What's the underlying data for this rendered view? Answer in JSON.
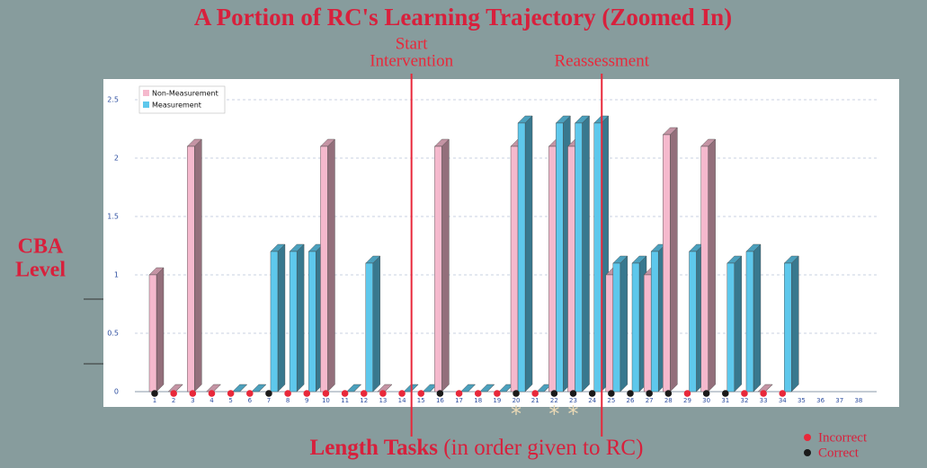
{
  "chart_data": {
    "type": "bar3d",
    "title": "A Portion of RC's Learning Trajectory (Zoomed In)",
    "ylabel": [
      "CBA",
      "Level"
    ],
    "xlabel": [
      "Length Tasks",
      " (in order given to RC)"
    ],
    "categories": [
      "1",
      "2",
      "3",
      "4",
      "5",
      "6",
      "7",
      "8",
      "9",
      "10",
      "11",
      "12",
      "13",
      "14",
      "15",
      "16",
      "17",
      "18",
      "19",
      "20",
      "21",
      "22",
      "23",
      "24",
      "25",
      "26",
      "27",
      "28",
      "29",
      "30",
      "31",
      "32",
      "33",
      "34",
      "35",
      "36",
      "37",
      "38"
    ],
    "series": [
      {
        "name": "Non-Measurement",
        "color": "#f5b9cd",
        "values": [
          1,
          0,
          2.1,
          0,
          null,
          null,
          null,
          null,
          null,
          2.1,
          null,
          null,
          0,
          null,
          null,
          2.1,
          null,
          null,
          null,
          2.1,
          null,
          2.1,
          2.1,
          null,
          1,
          null,
          1,
          2.2,
          null,
          2.1,
          null,
          null,
          0,
          null,
          null,
          null,
          null,
          null
        ]
      },
      {
        "name": "Measurement",
        "color": "#5ec8ec",
        "values": [
          null,
          null,
          null,
          null,
          0,
          0,
          1.2,
          1.2,
          1.2,
          null,
          0,
          1.1,
          null,
          0,
          0,
          null,
          0,
          0,
          0,
          2.3,
          0,
          2.3,
          2.3,
          2.3,
          1.1,
          1.1,
          1.2,
          null,
          1.2,
          null,
          1.1,
          1.2,
          null,
          1.1,
          null,
          null,
          null,
          null
        ]
      }
    ],
    "outcome_legend": [
      {
        "name": "Incorrect",
        "color": "#e8283a"
      },
      {
        "name": "Correct",
        "color": "#1a1a1a"
      }
    ],
    "outcomes": [
      "Correct",
      "Incorrect",
      "Incorrect",
      "Incorrect",
      "Incorrect",
      "Incorrect",
      "Correct",
      "Incorrect",
      "Incorrect",
      "Incorrect",
      "Incorrect",
      "Incorrect",
      "Incorrect",
      "Incorrect",
      "Incorrect",
      "Correct",
      "Incorrect",
      "Incorrect",
      "Incorrect",
      "Correct",
      "Incorrect",
      "Correct",
      "Correct",
      "Correct",
      "Correct",
      "Correct",
      "Correct",
      "Correct",
      "Incorrect",
      "Correct",
      "Correct",
      "Incorrect",
      "Incorrect",
      "Incorrect",
      null,
      null,
      null,
      null
    ],
    "markers": [
      {
        "after": "14",
        "lines": [
          "Start",
          "Intervention"
        ]
      },
      {
        "after": "24",
        "lines": [
          "Reassessment"
        ]
      }
    ],
    "asterisks": [
      {
        "category": "20",
        "label": "*"
      },
      {
        "category": "22",
        "label": "*"
      },
      {
        "category": "23",
        "label": "*"
      }
    ],
    "ylim": [
      0,
      2.5
    ],
    "yticks": [
      0,
      0.5,
      1,
      1.5,
      2,
      2.5
    ],
    "grid": true,
    "legend": "upper left"
  }
}
